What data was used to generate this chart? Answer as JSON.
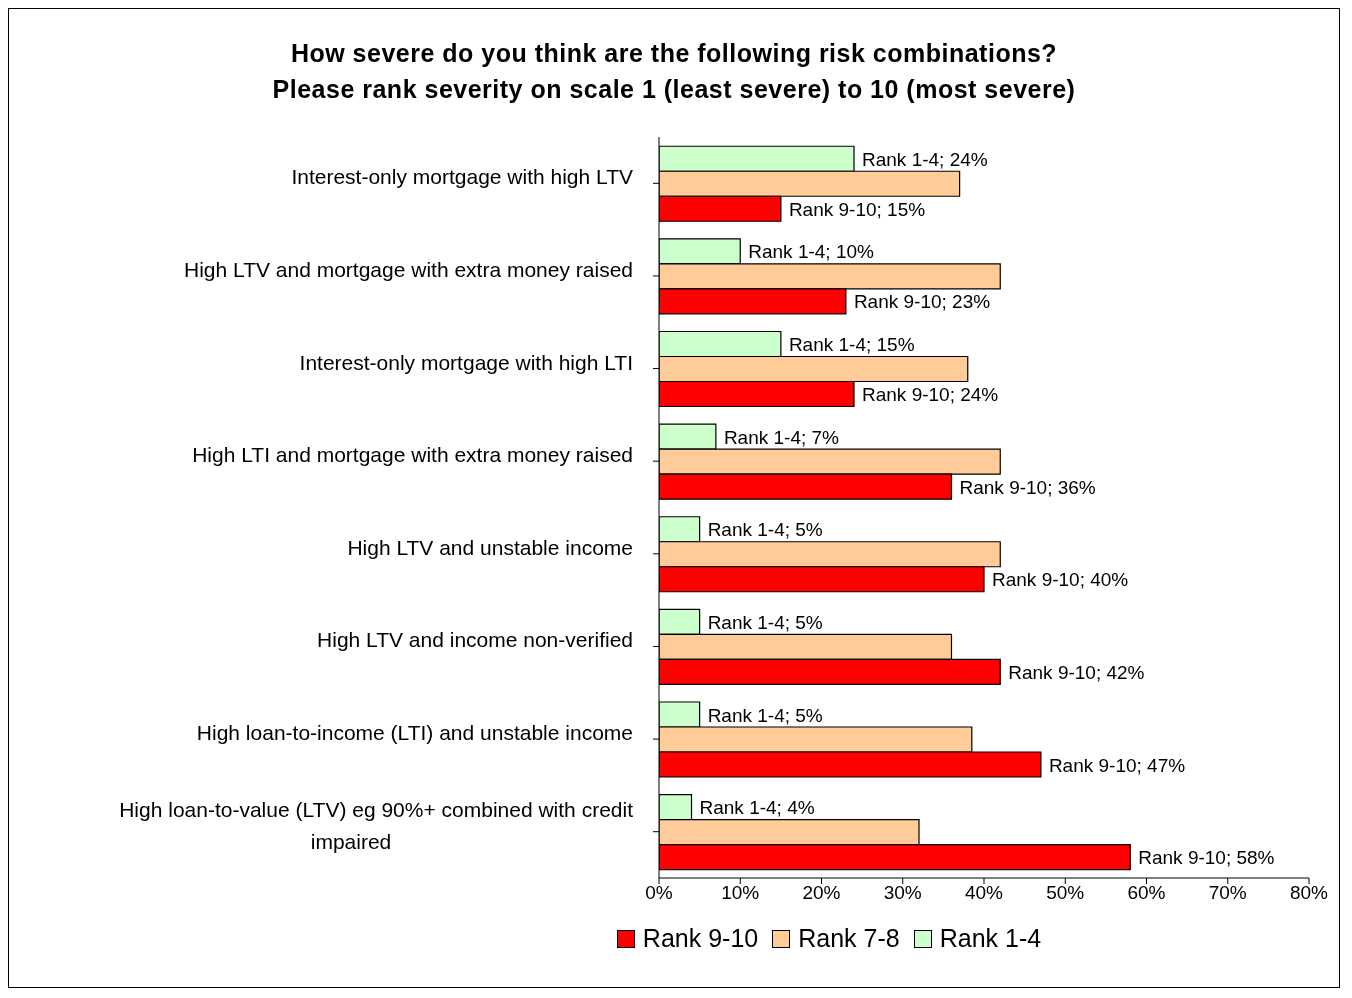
{
  "chart_data": {
    "type": "bar",
    "orientation": "horizontal",
    "title": "How severe do you think are the following risk combinations?\nPlease rank severity on scale 1 (least severe) to 10 (most severe)",
    "categories": [
      "Interest-only mortgage with high LTV",
      "High LTV and mortgage with extra money raised",
      "Interest-only mortgage with high LTI",
      "High LTI and mortgage with extra money raised",
      "High LTV and unstable income",
      "High LTV and income non-verified",
      "High loan-to-income (LTI) and unstable income",
      "High loan-to-value (LTV) eg 90%+ combined with credit impaired"
    ],
    "series": [
      {
        "name": "Rank 9-10",
        "color": "#ff0000",
        "values": [
          15,
          23,
          24,
          36,
          40,
          42,
          47,
          58
        ],
        "value_labels": [
          "Rank 9-10; 15%",
          "Rank 9-10; 23%",
          "Rank 9-10; 24%",
          "Rank 9-10; 36%",
          "Rank 9-10; 40%",
          "Rank 9-10; 42%",
          "Rank 9-10; 47%",
          "Rank 9-10; 58%"
        ]
      },
      {
        "name": "Rank 7-8",
        "color": "#ffcc99",
        "values": [
          37,
          42,
          38,
          42,
          42,
          36,
          38.5,
          32
        ]
      },
      {
        "name": "Rank 1-4",
        "color": "#ccffcc",
        "values": [
          24,
          10,
          15,
          7,
          5,
          5,
          5,
          4
        ],
        "value_labels": [
          "Rank 1-4; 24%",
          "Rank 1-4; 10%",
          "Rank 1-4; 15%",
          "Rank 1-4; 7%",
          "Rank 1-4; 5%",
          "Rank 1-4; 5%",
          "Rank 1-4; 5%",
          "Rank 1-4; 4%"
        ]
      }
    ],
    "xlim": [
      0,
      80
    ],
    "xticks": [
      {
        "value": 0,
        "label": "0%"
      },
      {
        "value": 10,
        "label": "10%"
      },
      {
        "value": 20,
        "label": "20%"
      },
      {
        "value": 30,
        "label": "30%"
      },
      {
        "value": 40,
        "label": "40%"
      },
      {
        "value": 50,
        "label": "50%"
      },
      {
        "value": 60,
        "label": "60%"
      },
      {
        "value": 70,
        "label": "70%"
      },
      {
        "value": 80,
        "label": "80%"
      }
    ],
    "legend": "bottom",
    "grid": false
  }
}
